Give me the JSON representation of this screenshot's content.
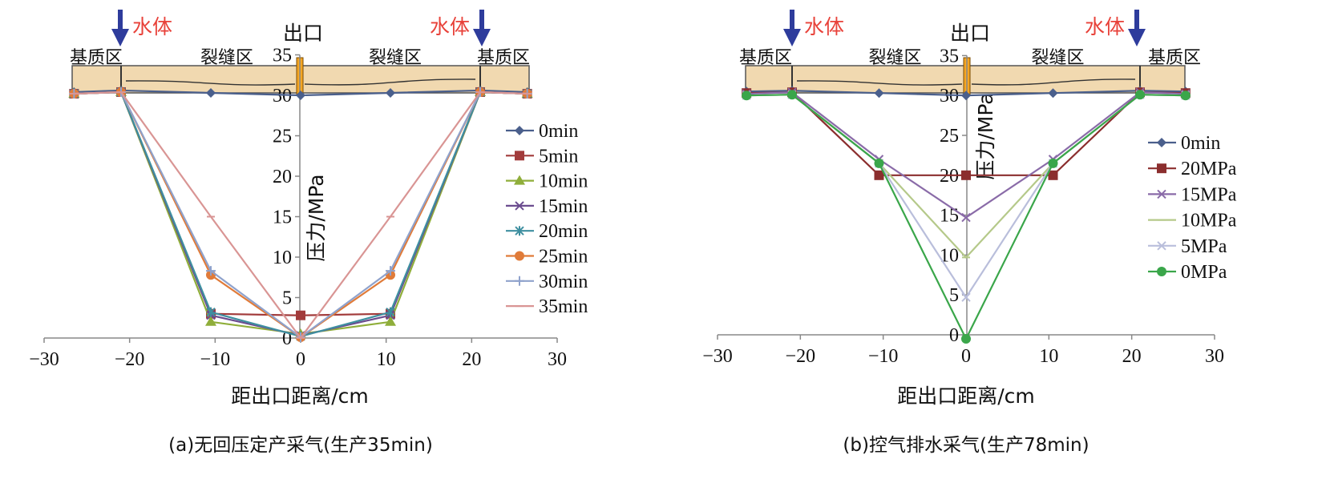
{
  "chart_data": [
    {
      "type": "line",
      "xlabel": "距出口距离/cm",
      "ylabel": "压力/MPa",
      "caption": "(a)无回压定产采气(生产35min)",
      "xlim": [
        -30,
        30
      ],
      "ylim": [
        0,
        35
      ],
      "xticks": [
        "−30",
        "−20",
        "−10",
        "0",
        "10",
        "20",
        "30"
      ],
      "yticks": [
        "0",
        "5",
        "10",
        "15",
        "20",
        "25",
        "30",
        "35"
      ],
      "legend_position": "right",
      "annotations": {
        "water_left": "水体",
        "water_right": "水体",
        "outlet": "出口",
        "zones": [
          "基质区",
          "裂缝区",
          "裂缝区",
          "基质区"
        ]
      },
      "x": [
        -26.5,
        -21,
        -10.5,
        0,
        10.5,
        21,
        26.5
      ],
      "series": [
        {
          "name": "0min",
          "values": [
            30.4,
            30.6,
            30.3,
            30.0,
            30.3,
            30.6,
            30.4
          ],
          "color": "#4a5f8c",
          "marker": "diamond"
        },
        {
          "name": "5min",
          "values": [
            30.2,
            30.4,
            3.0,
            2.8,
            3.0,
            30.4,
            30.2
          ],
          "color": "#a23b3b",
          "marker": "square"
        },
        {
          "name": "10min",
          "values": [
            30.2,
            30.4,
            2.0,
            0.5,
            2.0,
            30.4,
            30.2
          ],
          "color": "#8fae3a",
          "marker": "triangle"
        },
        {
          "name": "15min",
          "values": [
            30.2,
            30.4,
            2.8,
            0.3,
            2.8,
            30.4,
            30.2
          ],
          "color": "#6b4c8f",
          "marker": "x"
        },
        {
          "name": "20min",
          "values": [
            30.2,
            30.4,
            3.2,
            0.2,
            3.2,
            30.4,
            30.2
          ],
          "color": "#3e8fa0",
          "marker": "star"
        },
        {
          "name": "25min",
          "values": [
            30.2,
            30.4,
            7.8,
            0.1,
            7.8,
            30.4,
            30.2
          ],
          "color": "#e07b39",
          "marker": "circle"
        },
        {
          "name": "30min",
          "values": [
            30.2,
            30.4,
            8.3,
            0.1,
            8.3,
            30.4,
            30.2
          ],
          "color": "#8fa2cc",
          "marker": "plus"
        },
        {
          "name": "35min",
          "values": [
            30.2,
            30.4,
            15.0,
            0.0,
            15.0,
            30.4,
            30.2
          ],
          "color": "#d99594",
          "marker": "dash"
        }
      ]
    },
    {
      "type": "line",
      "xlabel": "距出口距离/cm",
      "ylabel": "压力/MPa",
      "caption": "(b)控气排水采气(生产78min)",
      "xlim": [
        -30,
        30
      ],
      "ylim": [
        0,
        35
      ],
      "xticks": [
        "−30",
        "−20",
        "−10",
        "0",
        "10",
        "20",
        "30"
      ],
      "yticks": [
        "0",
        "5",
        "10",
        "15",
        "20",
        "25",
        "30",
        "35"
      ],
      "legend_position": "right",
      "annotations": {
        "water_left": "水体",
        "water_right": "水体",
        "outlet": "出口",
        "zones": [
          "基质区",
          "裂缝区",
          "裂缝区",
          "基质区"
        ]
      },
      "x": [
        -26.5,
        -21,
        -10.5,
        0,
        10.5,
        21,
        26.5
      ],
      "series": [
        {
          "name": "0min",
          "values": [
            30.5,
            30.6,
            30.3,
            30.0,
            30.3,
            30.6,
            30.5
          ],
          "color": "#4a5f8c",
          "marker": "diamond"
        },
        {
          "name": "20MPa",
          "values": [
            30.3,
            30.4,
            20.0,
            20.0,
            20.0,
            30.4,
            30.3
          ],
          "color": "#8b2e2e",
          "marker": "square"
        },
        {
          "name": "15MPa",
          "values": [
            30.2,
            30.4,
            22.0,
            14.7,
            22.0,
            30.4,
            30.2
          ],
          "color": "#8a6ba8",
          "marker": "x"
        },
        {
          "name": "10MPa",
          "values": [
            30.0,
            30.1,
            21.5,
            9.7,
            21.5,
            30.1,
            30.0
          ],
          "color": "#b5c98a",
          "marker": "dash"
        },
        {
          "name": "5MPa",
          "values": [
            30.0,
            30.1,
            21.5,
            4.7,
            21.5,
            30.1,
            30.0
          ],
          "color": "#b9bedb",
          "marker": "x"
        },
        {
          "name": "0MPa",
          "values": [
            30.0,
            30.1,
            21.5,
            -0.5,
            21.5,
            30.1,
            30.0
          ],
          "color": "#3aa64a",
          "marker": "circle"
        }
      ]
    }
  ]
}
